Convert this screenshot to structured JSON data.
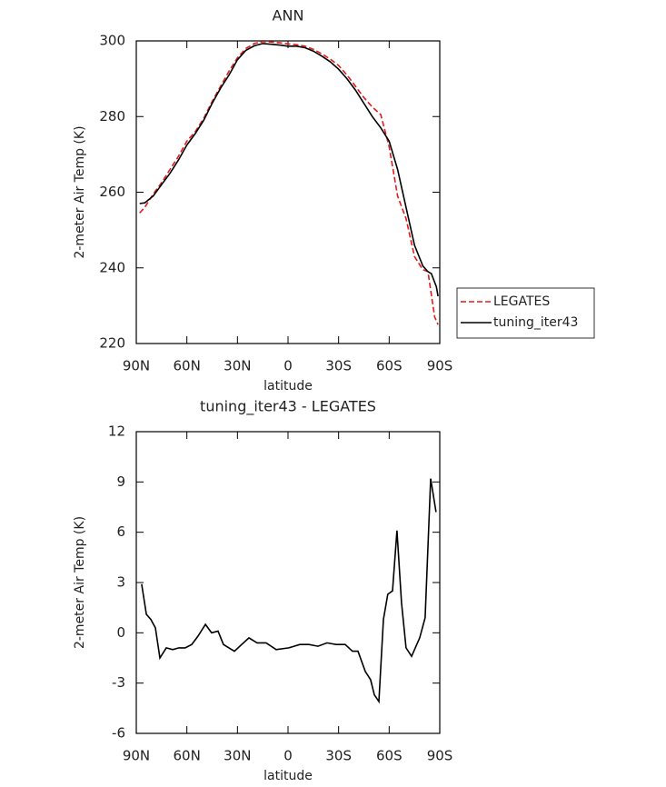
{
  "chart_data": [
    {
      "type": "line",
      "title": "ANN",
      "xlabel": "latitude",
      "ylabel": "2-meter Air Temp (K)",
      "xlim": [
        90,
        -90
      ],
      "xticks": [
        {
          "value": 90,
          "label": "90N"
        },
        {
          "value": 60,
          "label": "60N"
        },
        {
          "value": 30,
          "label": "30N"
        },
        0,
        {
          "value": -30,
          "label": "30S"
        },
        {
          "value": -60,
          "label": "60S"
        },
        {
          "value": -90,
          "label": "90S"
        }
      ],
      "ylim": [
        220,
        300
      ],
      "yticks": [
        220,
        240,
        260,
        280,
        300
      ],
      "legend": "outside-right",
      "series": [
        {
          "name": "LEGATES",
          "color": "#e31a1c",
          "dash": true,
          "x": [
            88,
            85,
            80,
            75,
            70,
            65,
            60,
            55,
            50,
            45,
            40,
            35,
            30,
            25,
            20,
            15,
            10,
            5,
            0,
            -5,
            -10,
            -15,
            -20,
            -25,
            -30,
            -35,
            -40,
            -45,
            -50,
            -55,
            -60,
            -65,
            -70,
            -75,
            -80,
            -83,
            -85,
            -87,
            -89
          ],
          "values": [
            254.5,
            256,
            259.5,
            262.5,
            266,
            269.5,
            273.5,
            276,
            279.5,
            284,
            288,
            292,
            295.5,
            298,
            299.3,
            299.8,
            299.7,
            299.5,
            299.2,
            299,
            298.6,
            297.8,
            296.6,
            295.2,
            293.5,
            291,
            288,
            285,
            282.5,
            280.5,
            272,
            259,
            253,
            243,
            239.5,
            239,
            233,
            227,
            225
          ]
        },
        {
          "name": "tuning_iter43",
          "color": "#000000",
          "dash": false,
          "x": [
            88,
            85,
            80,
            75,
            70,
            65,
            60,
            55,
            50,
            45,
            40,
            35,
            30,
            25,
            20,
            15,
            10,
            5,
            0,
            -5,
            -10,
            -15,
            -20,
            -25,
            -30,
            -35,
            -40,
            -45,
            -50,
            -55,
            -60,
            -65,
            -70,
            -75,
            -80,
            -83,
            -85,
            -88,
            -89
          ],
          "values": [
            257,
            257.2,
            259,
            262,
            265,
            268.5,
            272.5,
            275.5,
            279,
            283.5,
            287.5,
            291,
            295,
            297.5,
            298.7,
            299.3,
            299.1,
            298.9,
            298.6,
            298.6,
            298.2,
            297.3,
            296,
            294.5,
            292.5,
            290,
            287,
            283.5,
            280,
            277,
            273.5,
            266,
            256,
            246,
            240.5,
            239,
            238.5,
            235,
            232.5
          ]
        }
      ]
    },
    {
      "type": "line",
      "title": "tuning_iter43 - LEGATES",
      "xlabel": "latitude",
      "ylabel": "2-meter Air Temp (K)",
      "xlim": [
        90,
        -90
      ],
      "xticks": [
        {
          "value": 90,
          "label": "90N"
        },
        {
          "value": 60,
          "label": "60N"
        },
        {
          "value": 30,
          "label": "30N"
        },
        0,
        {
          "value": -30,
          "label": "30S"
        },
        {
          "value": -60,
          "label": "60S"
        },
        {
          "value": -90,
          "label": "90S"
        }
      ],
      "ylim": [
        -6,
        12
      ],
      "yticks": [
        -6,
        -3,
        0,
        3,
        6,
        9,
        12
      ],
      "color": "#000000",
      "x": [
        86.8,
        84,
        81.4,
        78.7,
        76,
        72.2,
        68.4,
        64.7,
        61,
        57.1,
        53.4,
        49,
        45.3,
        41.5,
        38.3,
        31.8,
        27.5,
        23.2,
        18.3,
        13,
        7,
        -0.5,
        -7,
        -12.4,
        -17.8,
        -23.1,
        -28.5,
        -33.9,
        -38.2,
        -41.5,
        -45.8,
        -49,
        -51.2,
        -53.9,
        -56.6,
        -59.2,
        -62,
        -64.6,
        -67.3,
        -70,
        -73.3,
        -78.1,
        -81.3,
        -84.6,
        -87.8
      ],
      "values": [
        2.9,
        1.1,
        0.8,
        0.3,
        -1.5,
        -0.9,
        -1.0,
        -0.9,
        -0.9,
        -0.7,
        -0.2,
        0.5,
        0.0,
        0.1,
        -0.7,
        -1.1,
        -0.7,
        -0.3,
        -0.6,
        -0.6,
        -1.0,
        -0.9,
        -0.7,
        -0.7,
        -0.8,
        -0.6,
        -0.7,
        -0.7,
        -1.1,
        -1.1,
        -2.3,
        -2.8,
        -3.7,
        -4.1,
        0.8,
        2.3,
        2.5,
        6.1,
        1.8,
        -0.9,
        -1.4,
        -0.3,
        0.9,
        9.2,
        7.2
      ]
    }
  ]
}
